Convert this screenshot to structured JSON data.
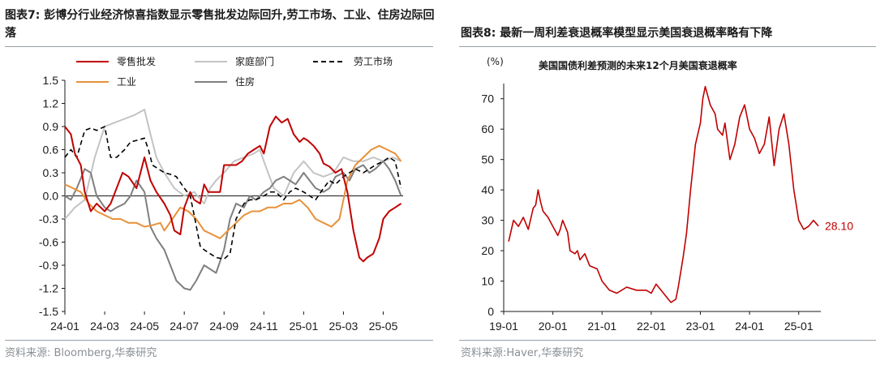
{
  "left_panel": {
    "title": "图表7:  彭博分行业经济惊喜指数显示零售批发边际回升,劳工市场、工业、住房边际回落",
    "source": "资料来源:   Bloomberg,华泰研究"
  },
  "right_panel": {
    "title": "图表8:  最新一周利差衰退概率模型显示美国衰退概率略有下降",
    "source": "资料来源:Haver,华泰研究"
  },
  "colors": {
    "retail": "#c00000",
    "household": "#c3c3c3",
    "labor": "#000000",
    "industry": "#e8913a",
    "housing": "#7f7f7f",
    "recession": "#c00000"
  },
  "chart_data": [
    {
      "type": "line",
      "ylim": [
        -1.5,
        1.5
      ],
      "yticks": [
        "1.5",
        "1.2",
        "0.9",
        "0.6",
        "0.3",
        "0.0",
        "-0.3",
        "-0.6",
        "-0.9",
        "-1.2",
        "-1.5"
      ],
      "xticks": [
        "24-01",
        "24-03",
        "24-05",
        "24-07",
        "24-09",
        "24-11",
        "25-01",
        "25-03",
        "25-05"
      ],
      "x_unit": "months since 24-01",
      "grid": false,
      "legend_position": "top",
      "series": [
        {
          "name": "零售批发",
          "key": "retail",
          "style": "solid",
          "x": [
            0,
            0.3,
            0.5,
            0.8,
            1,
            1.3,
            1.6,
            2,
            2.3,
            2.6,
            2.9,
            3.2,
            3.6,
            4,
            4.3,
            4.6,
            5,
            5.3,
            5.5,
            5.8,
            6,
            6.3,
            6.5,
            6.8,
            7,
            7.2,
            7.5,
            7.8,
            8,
            8.3,
            8.6,
            8.9,
            9.2,
            9.5,
            9.8,
            10,
            10.3,
            10.6,
            10.9,
            11.2,
            11.5,
            11.8,
            12,
            12.2,
            12.5,
            12.8,
            13,
            13.3,
            13.6,
            13.9,
            14.2,
            14.5,
            14.8,
            15,
            15.2,
            15.5,
            15.8,
            16,
            16.3,
            16.6,
            16.9
          ],
          "y": [
            0.9,
            0.8,
            0.55,
            0.4,
            0.05,
            -0.2,
            -0.1,
            -0.2,
            -0.1,
            0.1,
            0.3,
            0.25,
            0.1,
            0.5,
            0.2,
            0.05,
            -0.1,
            -0.25,
            -0.45,
            -0.5,
            -0.15,
            0.05,
            -0.05,
            -0.1,
            0.15,
            0.05,
            0.05,
            0.05,
            0.4,
            0.4,
            0.4,
            0.45,
            0.55,
            0.6,
            0.65,
            0.55,
            0.9,
            1.03,
            0.95,
            1.0,
            0.8,
            0.7,
            0.75,
            0.72,
            0.65,
            0.55,
            0.42,
            0.38,
            0.3,
            0.35,
            0.05,
            -0.45,
            -0.8,
            -0.85,
            -0.8,
            -0.75,
            -0.55,
            -0.3,
            -0.2,
            -0.15,
            -0.1
          ]
        },
        {
          "name": "家庭部门",
          "key": "household",
          "style": "solid",
          "x": [
            0,
            0.5,
            1,
            1.5,
            2,
            2.5,
            3,
            3.5,
            4,
            4.3,
            4.6,
            5,
            5.5,
            6,
            6.5,
            7,
            7.3,
            7.6,
            8,
            8.5,
            9,
            9.5,
            9.8,
            10,
            10.5,
            11,
            11.5,
            12,
            12.5,
            13,
            13.5,
            14,
            14.5,
            15,
            15.5,
            16,
            16.5,
            16.9
          ],
          "y": [
            -0.3,
            -0.15,
            -0.05,
            0.5,
            0.9,
            0.95,
            1.0,
            1.05,
            1.12,
            0.8,
            0.5,
            0.3,
            0.1,
            0.0,
            0.05,
            -0.1,
            0.1,
            0.2,
            0.3,
            0.45,
            0.5,
            0.55,
            0.6,
            0.45,
            0.1,
            0.0,
            0.3,
            0.45,
            0.3,
            0.25,
            0.3,
            0.5,
            0.45,
            0.45,
            0.5,
            0.45,
            0.5,
            0.45
          ]
        },
        {
          "name": "劳工市场",
          "key": "labor",
          "style": "dashed",
          "x": [
            0,
            0.3,
            0.6,
            1,
            1.3,
            1.6,
            2,
            2.3,
            2.6,
            3,
            3.3,
            3.6,
            4,
            4.2,
            4.4,
            4.7,
            5,
            5.3,
            5.6,
            6,
            6.3,
            6.5,
            6.8,
            7,
            7.3,
            7.6,
            8,
            8.3,
            8.6,
            9,
            9.3,
            9.6,
            10,
            10.3,
            10.6,
            11,
            11.3,
            11.6,
            12,
            12.3,
            12.6,
            13,
            13.3,
            13.6,
            14,
            14.3,
            14.6,
            15,
            15.3,
            15.6,
            16,
            16.3,
            16.6,
            16.9
          ],
          "y": [
            0.5,
            0.6,
            0.5,
            0.85,
            0.88,
            0.85,
            0.9,
            0.5,
            0.5,
            0.6,
            0.7,
            0.72,
            0.75,
            0.6,
            0.4,
            0.35,
            0.3,
            0.28,
            0.25,
            0.1,
            0.0,
            -0.25,
            -0.65,
            -0.7,
            -0.75,
            -0.8,
            -0.82,
            -0.75,
            -0.3,
            -0.1,
            -0.05,
            -0.05,
            0.0,
            0.05,
            0.05,
            -0.05,
            0.05,
            0.1,
            0.05,
            0.0,
            -0.05,
            0.1,
            0.2,
            0.15,
            0.25,
            0.3,
            0.35,
            0.3,
            0.35,
            0.4,
            0.45,
            0.5,
            0.45,
            0.1
          ]
        },
        {
          "name": "工业",
          "key": "industry",
          "style": "solid",
          "x": [
            0,
            0.4,
            0.8,
            1.2,
            1.6,
            2,
            2.4,
            2.8,
            3.2,
            3.6,
            4,
            4.4,
            4.8,
            5,
            5.4,
            5.8,
            6.2,
            6.6,
            7,
            7.4,
            7.8,
            8.2,
            8.6,
            9,
            9.4,
            9.8,
            10.2,
            10.6,
            11,
            11.4,
            11.8,
            12.2,
            12.6,
            13,
            13.4,
            13.8,
            14.2,
            14.6,
            15,
            15.4,
            15.8,
            16.2,
            16.6,
            16.9
          ],
          "y": [
            0.15,
            0.1,
            0.05,
            -0.1,
            -0.2,
            -0.25,
            -0.3,
            -0.3,
            -0.35,
            -0.35,
            -0.4,
            -0.38,
            -0.35,
            -0.45,
            -0.3,
            -0.15,
            -0.2,
            -0.3,
            -0.45,
            -0.5,
            -0.55,
            -0.45,
            -0.35,
            -0.25,
            -0.2,
            -0.2,
            -0.15,
            -0.15,
            -0.1,
            -0.1,
            -0.05,
            -0.15,
            -0.3,
            -0.35,
            -0.4,
            -0.3,
            0.2,
            0.4,
            0.5,
            0.6,
            0.65,
            0.6,
            0.55,
            0.45
          ]
        },
        {
          "name": "住房",
          "key": "housing",
          "style": "solid",
          "x": [
            0,
            0.3,
            0.6,
            1,
            1.3,
            1.6,
            2,
            2.3,
            2.6,
            3,
            3.3,
            3.6,
            4,
            4.3,
            4.6,
            5,
            5.3,
            5.6,
            6,
            6.3,
            6.6,
            7,
            7.3,
            7.6,
            8,
            8.3,
            8.6,
            9,
            9.3,
            9.6,
            10,
            10.3,
            10.6,
            11,
            11.3,
            11.6,
            12,
            12.3,
            12.6,
            13,
            13.3,
            13.6,
            14,
            14.3,
            14.6,
            15,
            15.3,
            15.6,
            16,
            16.3,
            16.6,
            16.9
          ],
          "y": [
            0.0,
            -0.05,
            0.1,
            0.35,
            0.3,
            0.0,
            -0.15,
            -0.2,
            -0.15,
            -0.1,
            0.0,
            0.2,
            0.05,
            -0.4,
            -0.55,
            -0.7,
            -0.9,
            -1.1,
            -1.2,
            -1.22,
            -1.1,
            -0.9,
            -0.95,
            -1.0,
            -0.7,
            -0.3,
            -0.1,
            -0.15,
            0.0,
            -0.05,
            0.05,
            0.1,
            0.2,
            0.25,
            0.2,
            0.15,
            0.3,
            0.2,
            0.1,
            0.05,
            0.1,
            0.25,
            0.3,
            0.2,
            0.35,
            0.4,
            0.3,
            0.35,
            0.45,
            0.35,
            0.2,
            0.0
          ]
        }
      ]
    },
    {
      "type": "line",
      "title": "美国国债利差预测的未来12个月美国衰退概率",
      "ylabel": "(%)",
      "ylim": [
        0,
        75
      ],
      "yticks": [
        "0",
        "10",
        "20",
        "30",
        "40",
        "50",
        "60",
        "70"
      ],
      "xticks": [
        "19-01",
        "20-01",
        "21-01",
        "22-01",
        "23-01",
        "24-01",
        "25-01"
      ],
      "x_unit": "years since 19-01",
      "grid": false,
      "last_value_label": "28.10",
      "series": [
        {
          "key": "recession",
          "x": [
            0.1,
            0.2,
            0.3,
            0.4,
            0.5,
            0.6,
            0.65,
            0.7,
            0.75,
            0.8,
            0.9,
            1.0,
            1.1,
            1.15,
            1.2,
            1.3,
            1.35,
            1.45,
            1.5,
            1.55,
            1.65,
            1.75,
            1.9,
            2.0,
            2.15,
            2.3,
            2.5,
            2.7,
            2.9,
            3.0,
            3.1,
            3.2,
            3.3,
            3.4,
            3.5,
            3.55,
            3.65,
            3.72,
            3.8,
            3.9,
            4.0,
            4.05,
            4.1,
            4.2,
            4.3,
            4.35,
            4.45,
            4.5,
            4.6,
            4.7,
            4.8,
            4.9,
            5.0,
            5.1,
            5.2,
            5.3,
            5.4,
            5.5,
            5.6,
            5.7,
            5.8,
            5.9,
            6.0,
            6.1,
            6.2,
            6.3,
            6.4
          ],
          "y": [
            23,
            30,
            28,
            31,
            27,
            34,
            35,
            40,
            36,
            33,
            31,
            28,
            25,
            27,
            30,
            26,
            20,
            19,
            20,
            17,
            19,
            15,
            14,
            10,
            7,
            6,
            8,
            7,
            7,
            6,
            9,
            7,
            5,
            3,
            4,
            8,
            18,
            26,
            40,
            55,
            62,
            70,
            74,
            68,
            65,
            60,
            58,
            62,
            50,
            55,
            64,
            68,
            60,
            57,
            52,
            55,
            64,
            48,
            60,
            65,
            55,
            40,
            30,
            27,
            28,
            30,
            28.1
          ]
        }
      ]
    }
  ]
}
